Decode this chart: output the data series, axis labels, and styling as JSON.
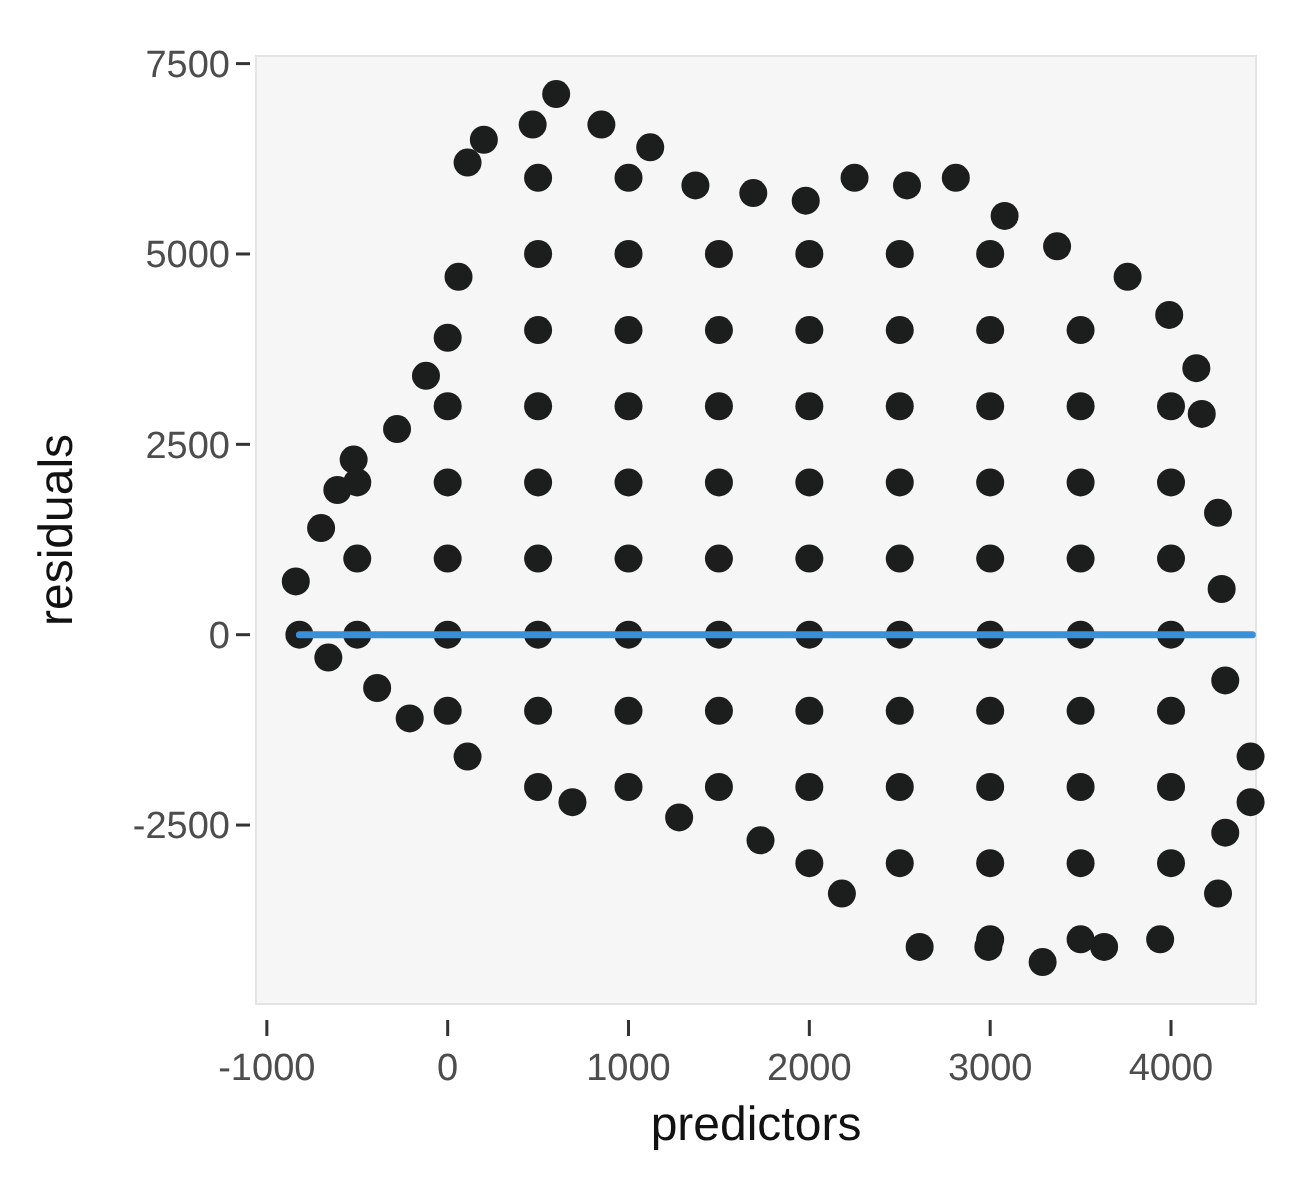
{
  "chart_data": {
    "type": "scatter",
    "xlabel": "predictors",
    "ylabel": "residuals",
    "xlim": [
      -1060,
      4470
    ],
    "ylim": [
      -4850,
      7600
    ],
    "xticks": [
      -1000,
      0,
      1000,
      2000,
      3000,
      4000
    ],
    "yticks": [
      -2500,
      0,
      2500,
      5000,
      7500
    ],
    "grid": false,
    "marker": "circle",
    "series": [
      {
        "color": "#1b1e1d",
        "x": [
          -840,
          -700,
          -610,
          -520,
          -280,
          -120,
          0,
          60,
          110,
          200,
          470,
          600,
          850,
          1120,
          1370,
          1690,
          1980,
          2250,
          2540,
          2810,
          3080,
          3370,
          3760,
          3990,
          4140,
          4170,
          4260,
          4280,
          4300,
          4440,
          4440,
          4300,
          4260,
          3940,
          3630,
          3290,
          2990,
          2610,
          2180,
          1730,
          1280,
          690,
          110,
          -210,
          -390,
          -660,
          -820,
          -500,
          -500,
          -500,
          0,
          0,
          0,
          0,
          0,
          500,
          500,
          500,
          500,
          500,
          500,
          500,
          500,
          500,
          1000,
          1000,
          1000,
          1000,
          1000,
          1000,
          1000,
          1000,
          1000,
          1500,
          1500,
          1500,
          1500,
          1500,
          1500,
          1500,
          1500,
          2000,
          2000,
          2000,
          2000,
          2000,
          2000,
          2000,
          2000,
          2000,
          2500,
          2500,
          2500,
          2500,
          2500,
          2500,
          2500,
          2500,
          2500,
          3000,
          3000,
          3000,
          3000,
          3000,
          3000,
          3000,
          3000,
          3000,
          3000,
          3500,
          3500,
          3500,
          3500,
          3500,
          3500,
          3500,
          3500,
          3500,
          4000,
          4000,
          4000,
          4000,
          4000,
          4000,
          4000
        ],
        "values": [
          700,
          1400,
          1900,
          2300,
          2700,
          3400,
          3900,
          4700,
          6200,
          6500,
          6700,
          7100,
          6700,
          6400,
          5900,
          5800,
          5700,
          6000,
          5900,
          6000,
          5500,
          5100,
          4700,
          4200,
          3500,
          2900,
          1600,
          600,
          -600,
          -1600,
          -2200,
          -2600,
          -3400,
          -4000,
          -4100,
          -4300,
          -4100,
          -4100,
          -3400,
          -2700,
          -2400,
          -2200,
          -1600,
          -1100,
          -700,
          -300,
          0,
          2000,
          1000,
          0,
          3000,
          2000,
          1000,
          0,
          -1000,
          6000,
          5000,
          4000,
          3000,
          2000,
          1000,
          0,
          -1000,
          -2000,
          6000,
          5000,
          4000,
          3000,
          2000,
          1000,
          0,
          -1000,
          -2000,
          5000,
          4000,
          3000,
          2000,
          1000,
          0,
          -1000,
          -2000,
          5000,
          4000,
          3000,
          2000,
          1000,
          0,
          -1000,
          -2000,
          -3000,
          5000,
          4000,
          3000,
          2000,
          1000,
          0,
          -1000,
          -2000,
          -3000,
          5000,
          4000,
          3000,
          2000,
          1000,
          0,
          -1000,
          -2000,
          -3000,
          -4000,
          4000,
          3000,
          2000,
          1000,
          0,
          -1000,
          -2000,
          -3000,
          -4000,
          3000,
          2000,
          1000,
          0,
          -1000,
          -2000,
          -3000
        ]
      },
      {
        "type": "line",
        "color": "#3a8fd9",
        "marker": "none",
        "line_style": "solid",
        "x": [
          -820,
          4450
        ],
        "values": [
          0,
          0
        ]
      }
    ]
  }
}
